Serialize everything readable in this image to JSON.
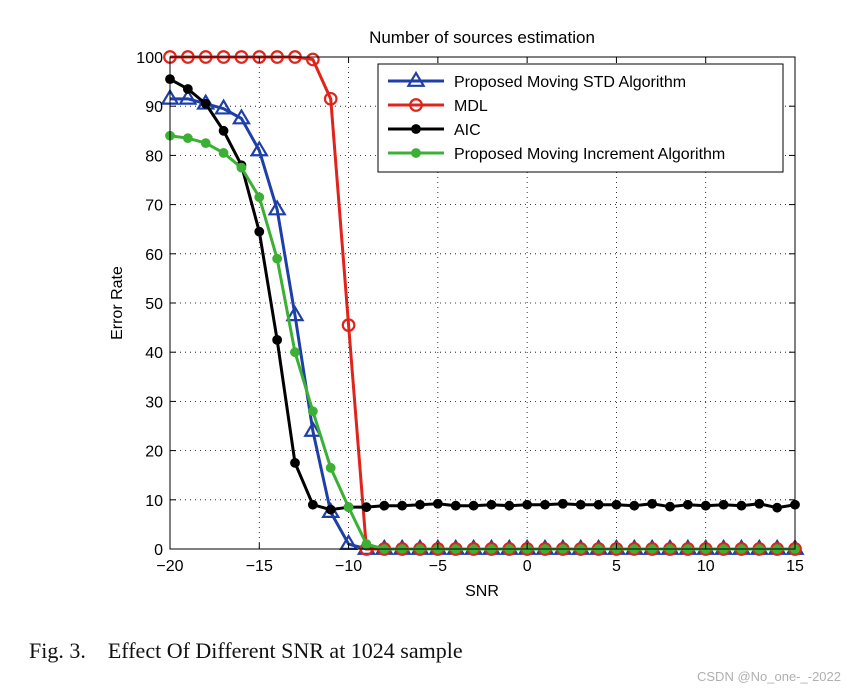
{
  "chart_data": {
    "type": "line",
    "title": "Number of sources estimation",
    "xlabel": "SNR",
    "ylabel": "Error Rate",
    "xlim": [
      -20,
      15
    ],
    "ylim": [
      0,
      100
    ],
    "xticks": [
      -20,
      -15,
      -10,
      -5,
      0,
      5,
      10,
      15
    ],
    "yticks": [
      0,
      10,
      20,
      30,
      40,
      50,
      60,
      70,
      80,
      90,
      100
    ],
    "xtick_labels": [
      "−20",
      "−15",
      "−10",
      "−5",
      "0",
      "5",
      "10",
      "15"
    ],
    "ytick_labels": [
      "0",
      "10",
      "20",
      "30",
      "40",
      "50",
      "60",
      "70",
      "80",
      "90",
      "100"
    ],
    "grid": true,
    "legend_position": "top-right",
    "x": [
      -20,
      -19,
      -18,
      -17,
      -16,
      -15,
      -14,
      -13,
      -12,
      -11,
      -10,
      -9,
      -8,
      -7,
      -6,
      -5,
      -4,
      -3,
      -2,
      -1,
      0,
      1,
      2,
      3,
      4,
      5,
      6,
      7,
      8,
      9,
      10,
      11,
      12,
      13,
      14,
      15
    ],
    "series": [
      {
        "name": "Proposed Moving STD Algorithm",
        "color": "#1f3fa8",
        "marker": "triangle",
        "values": [
          91.5,
          91.5,
          90.5,
          89.5,
          87.5,
          81,
          69,
          47.5,
          24,
          7.5,
          1,
          0,
          0,
          0,
          0,
          0,
          0,
          0,
          0,
          0,
          0,
          0,
          0,
          0,
          0,
          0,
          0,
          0,
          0,
          0,
          0,
          0,
          0,
          0,
          0,
          0
        ]
      },
      {
        "name": "MDL",
        "color": "#e0241b",
        "marker": "circle-open",
        "values": [
          100,
          100,
          100,
          100,
          100,
          100,
          100,
          100,
          99.5,
          91.5,
          45.5,
          0,
          0,
          0,
          0,
          0,
          0,
          0,
          0,
          0,
          0,
          0,
          0,
          0,
          0,
          0,
          0,
          0,
          0,
          0,
          0,
          0,
          0,
          0,
          0,
          0
        ]
      },
      {
        "name": "AIC",
        "color": "#000000",
        "marker": "circle-filled",
        "values": [
          95.5,
          93.5,
          90.5,
          85,
          78,
          64.5,
          42.5,
          17.5,
          9,
          8,
          8.5,
          8.5,
          8.8,
          8.8,
          9,
          9.2,
          8.8,
          8.8,
          9,
          8.8,
          9,
          9,
          9.2,
          9,
          9,
          9,
          8.8,
          9.2,
          8.6,
          9,
          8.8,
          9,
          8.8,
          9.2,
          8.4,
          9
        ]
      },
      {
        "name": "Proposed Moving Increment Algorithm",
        "color": "#3cb034",
        "marker": "circle-filled",
        "values": [
          84,
          83.5,
          82.5,
          80.5,
          77.5,
          71.5,
          59,
          40,
          28,
          16.5,
          8.5,
          1,
          0,
          0,
          0,
          0,
          0,
          0,
          0,
          0,
          0,
          0,
          0,
          0,
          0,
          0,
          0,
          0,
          0,
          0,
          0,
          0,
          0,
          0,
          0,
          0
        ]
      }
    ]
  },
  "caption": {
    "label": "Fig. 3.",
    "text": "Effect Of Different SNR at 1024 sample"
  },
  "watermark": "CSDN @No_one-_-2022"
}
